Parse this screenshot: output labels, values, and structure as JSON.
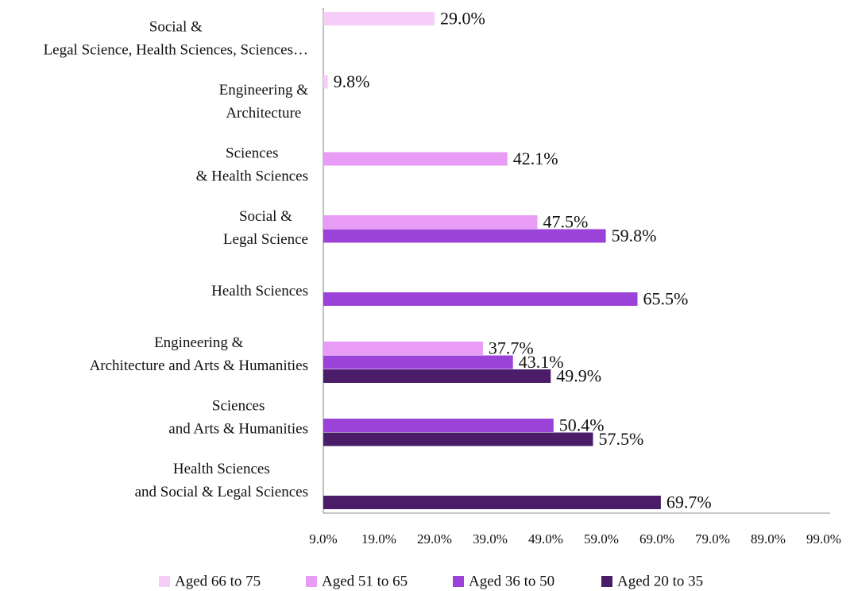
{
  "chart_data": {
    "type": "hbar",
    "categories": [
      [
        "Social &",
        "Legal Science, Health Sciences, Sciences…"
      ],
      [
        "Engineering &",
        "Architecture"
      ],
      [
        "Sciences",
        "& Health Sciences"
      ],
      [
        "Social &",
        "Legal Science"
      ],
      [
        "Health Sciences"
      ],
      [
        "Engineering &",
        "Architecture and Arts & Humanities"
      ],
      [
        "Sciences",
        "and Arts & Humanities"
      ],
      [
        "Health Sciences",
        "and Social & Legal Sciences"
      ]
    ],
    "series": [
      {
        "name": "Aged 66 to 75",
        "color": "#f5cdf8",
        "values": [
          29.0,
          9.8,
          null,
          null,
          null,
          null,
          null,
          null
        ],
        "value_labels": [
          "29.0%",
          "9.8%",
          null,
          null,
          null,
          null,
          null,
          null
        ]
      },
      {
        "name": "Aged 51 to 65",
        "color": "#e99cf5",
        "values": [
          null,
          null,
          42.1,
          47.5,
          null,
          37.7,
          null,
          null
        ],
        "value_labels": [
          null,
          null,
          "42.1%",
          "47.5%",
          null,
          "37.7%",
          null,
          null
        ]
      },
      {
        "name": "Aged 36 to 50",
        "color": "#9b43d9",
        "values": [
          null,
          null,
          null,
          59.8,
          65.5,
          43.1,
          50.4,
          null
        ],
        "value_labels": [
          null,
          null,
          null,
          "59.8%",
          "65.5%",
          "43.1%",
          "50.4%",
          null
        ]
      },
      {
        "name": "Aged 20 to 35",
        "color": "#4b1d68",
        "values": [
          null,
          null,
          null,
          null,
          null,
          49.9,
          57.5,
          69.7
        ],
        "value_labels": [
          null,
          null,
          null,
          null,
          null,
          "49.9%",
          "57.5%",
          "69.7%"
        ]
      }
    ],
    "xlim": [
      9,
      99
    ],
    "xticks": [
      {
        "value": 9,
        "label": "9.0%"
      },
      {
        "value": 19,
        "label": "19.0%"
      },
      {
        "value": 29,
        "label": "29.0%"
      },
      {
        "value": 39,
        "label": "39.0%"
      },
      {
        "value": 49,
        "label": "49.0%"
      },
      {
        "value": 59,
        "label": "59.0%"
      },
      {
        "value": 69,
        "label": "69.0%"
      },
      {
        "value": 79,
        "label": "79.0%"
      },
      {
        "value": 89,
        "label": "89.0%"
      },
      {
        "value": 99,
        "label": "99.0%"
      }
    ],
    "legend": "bottom"
  }
}
